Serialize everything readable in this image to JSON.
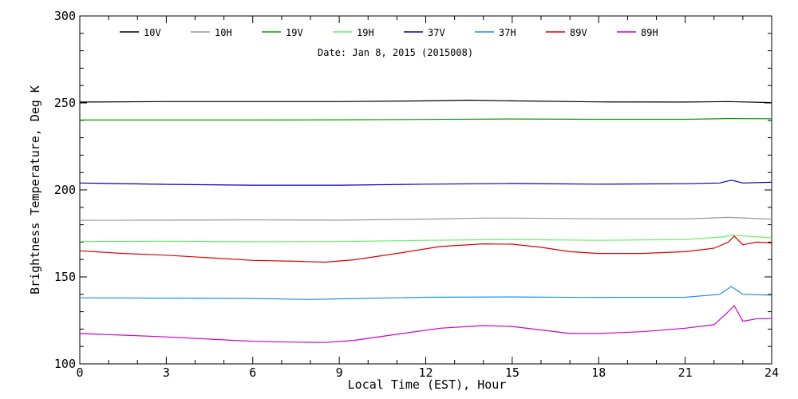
{
  "chart_data": {
    "type": "line",
    "title": "",
    "subtitle": "Date: Jan  8, 2015 (2015008)",
    "xlabel": "Local Time (EST), Hour",
    "ylabel": "Brightness Temperature, Deg K",
    "xlim": [
      0,
      24
    ],
    "ylim": [
      100,
      300
    ],
    "x_ticks": [
      "0",
      "3",
      "6",
      "9",
      "12",
      "15",
      "18",
      "21",
      "24"
    ],
    "y_ticks": [
      "100",
      "150",
      "200",
      "250",
      "300"
    ],
    "grid": false,
    "legend_position": "top",
    "series": [
      {
        "name": "10V",
        "color": "#000000",
        "x": [
          0,
          3,
          6,
          9,
          12,
          13.5,
          15,
          18,
          21,
          22.5,
          24
        ],
        "y": [
          250.5,
          250.8,
          250.8,
          250.8,
          251.2,
          251.6,
          251.2,
          250.6,
          250.5,
          250.8,
          250.2
        ]
      },
      {
        "name": "10H",
        "color": "#999999",
        "x": [
          0,
          3,
          6,
          9,
          12,
          14,
          15,
          18,
          21,
          22.5,
          24
        ],
        "y": [
          182.5,
          182.6,
          182.8,
          182.6,
          183.2,
          183.8,
          183.8,
          183.4,
          183.3,
          184.2,
          183.2
        ]
      },
      {
        "name": "19V",
        "color": "#00a000",
        "x": [
          0,
          3,
          6,
          9,
          12,
          15,
          18,
          21,
          22.5,
          24
        ],
        "y": [
          240.2,
          240.2,
          240.2,
          240.3,
          240.5,
          240.8,
          240.6,
          240.6,
          241.0,
          240.9
        ]
      },
      {
        "name": "19H",
        "color": "#66ee66",
        "x": [
          0,
          3,
          6,
          9,
          12,
          15,
          18,
          21,
          22.3,
          22.6,
          24
        ],
        "y": [
          170.3,
          170.5,
          170.2,
          170.3,
          171.0,
          171.5,
          171.0,
          171.5,
          173.0,
          174.0,
          172.5
        ]
      },
      {
        "name": "37V",
        "color": "#0000b0",
        "x": [
          0,
          3,
          6,
          9,
          12,
          15,
          18,
          21,
          22.2,
          22.6,
          23.0,
          24
        ],
        "y": [
          204.0,
          203.2,
          202.7,
          202.7,
          203.3,
          203.7,
          203.3,
          203.6,
          204.0,
          205.6,
          204.0,
          204.4
        ]
      },
      {
        "name": "37H",
        "color": "#1a90e6",
        "x": [
          0,
          3,
          6,
          8,
          9,
          12,
          15,
          17.5,
          21,
          22.2,
          22.6,
          23.0,
          24
        ],
        "y": [
          138.0,
          137.8,
          137.6,
          137.0,
          137.4,
          138.3,
          138.5,
          138.2,
          138.3,
          140.0,
          144.5,
          140.0,
          139.5
        ]
      },
      {
        "name": "89V",
        "color": "#dd0000",
        "x": [
          0,
          1.5,
          3,
          4.5,
          6,
          7.5,
          8.5,
          9.5,
          11,
          12.5,
          14,
          15,
          16,
          17,
          18,
          19.5,
          21,
          22,
          22.5,
          22.7,
          23.0,
          23.5,
          24
        ],
        "y": [
          165.0,
          163.5,
          162.5,
          161.0,
          159.5,
          159.0,
          158.5,
          159.8,
          163.5,
          167.5,
          169.0,
          168.8,
          167.0,
          164.5,
          163.5,
          163.5,
          164.5,
          166.5,
          170.0,
          173.5,
          168.5,
          170.0,
          169.5
        ]
      },
      {
        "name": "89H",
        "color": "#cc00cc",
        "x": [
          0,
          1.5,
          3,
          4.5,
          6,
          7.5,
          8.5,
          9.5,
          11,
          12.5,
          14,
          15,
          16,
          17,
          18,
          19.5,
          21,
          22,
          22.4,
          22.7,
          23.0,
          23.5,
          24
        ],
        "y": [
          117.5,
          116.5,
          115.5,
          114.2,
          113.0,
          112.5,
          112.3,
          113.5,
          117.0,
          120.5,
          122.0,
          121.5,
          119.5,
          117.5,
          117.5,
          118.5,
          120.5,
          122.5,
          128.5,
          133.5,
          124.5,
          126.0,
          126.0
        ]
      }
    ]
  }
}
